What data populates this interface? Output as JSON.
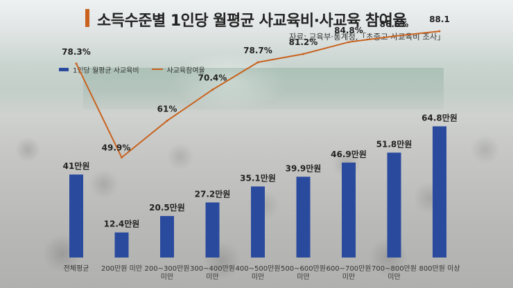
{
  "title": "소득수준별 1인당 월평균 사교육비·사교육 참여율",
  "source": "자료: 교육부·통계청,「초중고 사교육비 조사」",
  "colors": {
    "bar": "#2a4a9e",
    "line": "#c8621e",
    "accent": "#c8621e"
  },
  "chart_data": {
    "type": "bar",
    "categories": [
      [
        "전체평균"
      ],
      [
        "200만원 미만"
      ],
      [
        "200~300만원",
        "미만"
      ],
      [
        "300~400만원",
        "미만"
      ],
      [
        "400~500만원",
        "미만"
      ],
      [
        "500~600만원",
        "미만"
      ],
      [
        "600~700만원",
        "미만"
      ],
      [
        "700~800만원",
        "미만"
      ],
      [
        "800만원 이상"
      ]
    ],
    "series": [
      {
        "name": "1인당 월평균 사교육비",
        "kind": "bar",
        "values": [
          41,
          12.4,
          20.5,
          27.2,
          35.1,
          39.9,
          46.9,
          51.8,
          64.8
        ],
        "labels": [
          "41만원",
          "12.4만원",
          "20.5만원",
          "27.2만원",
          "35.1만원",
          "39.9만원",
          "46.9만원",
          "51.8만원",
          "64.8만원"
        ]
      },
      {
        "name": "사교육참여율",
        "kind": "line",
        "values": [
          78.3,
          49.9,
          61,
          70.4,
          78.7,
          81.2,
          84.8,
          86.6,
          88.1
        ],
        "labels": [
          "78.3%",
          "49.9%",
          "61%",
          "70.4%",
          "78.7%",
          "81.2%",
          "84.8%",
          "86.6%",
          "88.1"
        ]
      }
    ],
    "legend": "top-left"
  }
}
